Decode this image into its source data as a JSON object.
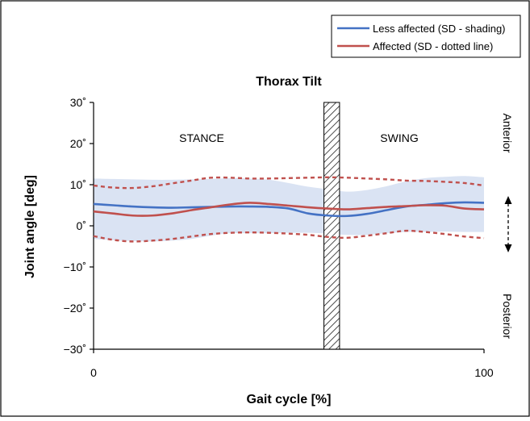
{
  "chart_data": {
    "type": "line",
    "title": "Thorax Tilt",
    "xlabel": "Gait cycle [%]",
    "ylabel": "Joint angle [deg]",
    "xlim": [
      0,
      100
    ],
    "ylim": [
      -30,
      30
    ],
    "x_ticks": [
      "0",
      "100"
    ],
    "y_ticks": [
      "30˚",
      "20˚",
      "10˚",
      "0˚",
      "−10˚",
      "−20˚",
      "−30˚"
    ],
    "y_tick_values": [
      30,
      20,
      10,
      0,
      -10,
      -20,
      -30
    ],
    "legend": {
      "placement": "top-right",
      "entries": [
        "Less affected (SD - shading)",
        "Affected (SD - dotted line)"
      ]
    },
    "phase_labels": {
      "stance": "STANCE",
      "swing": "SWING"
    },
    "toe_off_percent": [
      59,
      63
    ],
    "direction_labels": {
      "top": "Anterior",
      "bottom": "Posterior"
    },
    "colors": {
      "less_affected": "#4472c4",
      "affected": "#c0504d",
      "shading": "#dae3f3"
    },
    "x": [
      0,
      5,
      10,
      15,
      20,
      25,
      30,
      35,
      40,
      45,
      50,
      55,
      60,
      65,
      70,
      75,
      80,
      85,
      90,
      95,
      100
    ],
    "series": [
      {
        "name": "Less affected (SD - shading)",
        "values": [
          5.3,
          5.0,
          4.7,
          4.5,
          4.4,
          4.5,
          4.6,
          4.7,
          4.7,
          4.6,
          4.2,
          3.0,
          2.5,
          2.4,
          2.9,
          3.8,
          4.7,
          5.1,
          5.5,
          5.7,
          5.6
        ],
        "sd_upper": [
          11.5,
          11.4,
          11.3,
          11.2,
          11.2,
          11.3,
          11.4,
          11.6,
          11.5,
          11.2,
          10.4,
          9.5,
          8.9,
          8.3,
          8.7,
          9.6,
          10.8,
          11.6,
          11.9,
          12.1,
          11.8
        ],
        "sd_lower": [
          -3.2,
          -3.5,
          -3.7,
          -3.8,
          -3.6,
          -3.2,
          -2.4,
          -1.8,
          -1.8,
          -1.8,
          -1.7,
          -1.7,
          -1.9,
          -2.2,
          -2.2,
          -1.8,
          -1.5,
          -1.5,
          -1.4,
          -1.5,
          -1.5
        ]
      },
      {
        "name": "Affected (SD - dotted line)",
        "values": [
          3.5,
          3.0,
          2.5,
          2.5,
          3.0,
          3.8,
          4.5,
          5.2,
          5.6,
          5.3,
          4.9,
          4.5,
          4.2,
          4.0,
          4.3,
          4.6,
          4.8,
          5.0,
          4.9,
          4.2,
          4.0
        ],
        "sd_upper": [
          9.8,
          9.3,
          9.2,
          9.6,
          10.3,
          11.0,
          11.7,
          11.7,
          11.5,
          11.5,
          11.6,
          11.7,
          11.8,
          11.7,
          11.5,
          11.3,
          11.0,
          10.9,
          10.7,
          10.4,
          9.8
        ],
        "sd_lower": [
          -2.5,
          -3.4,
          -3.8,
          -3.6,
          -3.2,
          -2.6,
          -2.0,
          -1.7,
          -1.6,
          -1.7,
          -1.9,
          -2.2,
          -2.7,
          -2.9,
          -2.4,
          -1.8,
          -1.2,
          -1.5,
          -2.0,
          -2.6,
          -3.0
        ]
      }
    ]
  }
}
